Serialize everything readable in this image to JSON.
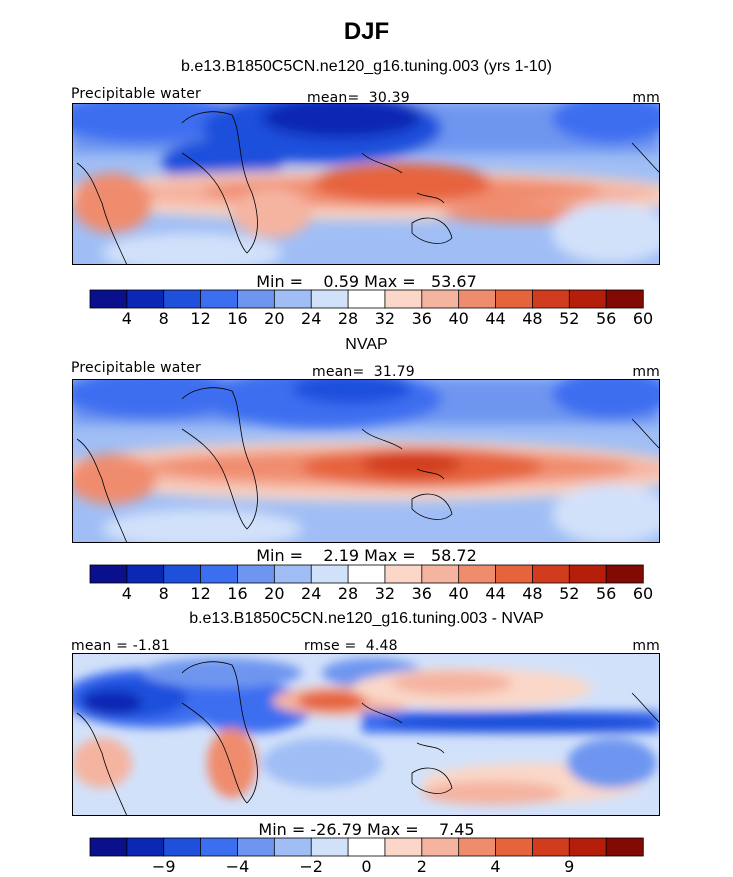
{
  "figure": {
    "season": "DJF"
  },
  "chart_data": [
    {
      "type": "heatmap",
      "title": "b.e13.B1850C5CN.ne120_g16.tuning.003 (yrs 1-10)",
      "variable": "Precipitable water",
      "units": "mm",
      "stat_label": "mean=",
      "stat_value": "30.39",
      "min_label": "Min =",
      "min_value": "0.59",
      "max_label": "Max =",
      "max_value": "53.67",
      "colorbar_ticks": [
        "4",
        "8",
        "12",
        "16",
        "20",
        "24",
        "28",
        "32",
        "36",
        "40",
        "44",
        "48",
        "52",
        "56",
        "60"
      ],
      "colorbar_colors": [
        "#0a0f8c",
        "#0a28b4",
        "#1e50dc",
        "#3c6ef0",
        "#6e96f0",
        "#a0bef5",
        "#d2e1fa",
        "#ffffff",
        "#fad7c8",
        "#f5b4a0",
        "#f08c6e",
        "#e6643c",
        "#d23c1e",
        "#b41e0a",
        "#820a05"
      ]
    },
    {
      "type": "heatmap",
      "title": "NVAP",
      "variable": "Precipitable water",
      "units": "mm",
      "stat_label": "mean=",
      "stat_value": "31.79",
      "min_label": "Min =",
      "min_value": "2.19",
      "max_label": "Max =",
      "max_value": "58.72",
      "colorbar_ticks": [
        "4",
        "8",
        "12",
        "16",
        "20",
        "24",
        "28",
        "32",
        "36",
        "40",
        "44",
        "48",
        "52",
        "56",
        "60"
      ],
      "colorbar_colors": [
        "#0a0f8c",
        "#0a28b4",
        "#1e50dc",
        "#3c6ef0",
        "#6e96f0",
        "#a0bef5",
        "#d2e1fa",
        "#ffffff",
        "#fad7c8",
        "#f5b4a0",
        "#f08c6e",
        "#e6643c",
        "#d23c1e",
        "#b41e0a",
        "#820a05"
      ]
    },
    {
      "type": "heatmap",
      "title": "b.e13.B1850C5CN.ne120_g16.tuning.003 - NVAP",
      "variable": "",
      "units": "mm",
      "mean_label": "mean =",
      "mean_value": "-1.81",
      "stat_label": "rmse =",
      "stat_value": "4.48",
      "min_label": "Min =",
      "min_value": "-26.79",
      "max_label": "Max =",
      "max_value": "7.45",
      "colorbar_ticks": [
        "-9",
        "-4",
        "-2",
        "0",
        "2",
        "4",
        "9"
      ],
      "colorbar_colors": [
        "#0a0f8c",
        "#0a28b4",
        "#1e50dc",
        "#3c6ef0",
        "#6e96f0",
        "#a0bef5",
        "#d2e1fa",
        "#ffffff",
        "#fad7c8",
        "#f5b4a0",
        "#f08c6e",
        "#e6643c",
        "#d23c1e",
        "#b41e0a",
        "#820a05"
      ]
    }
  ]
}
